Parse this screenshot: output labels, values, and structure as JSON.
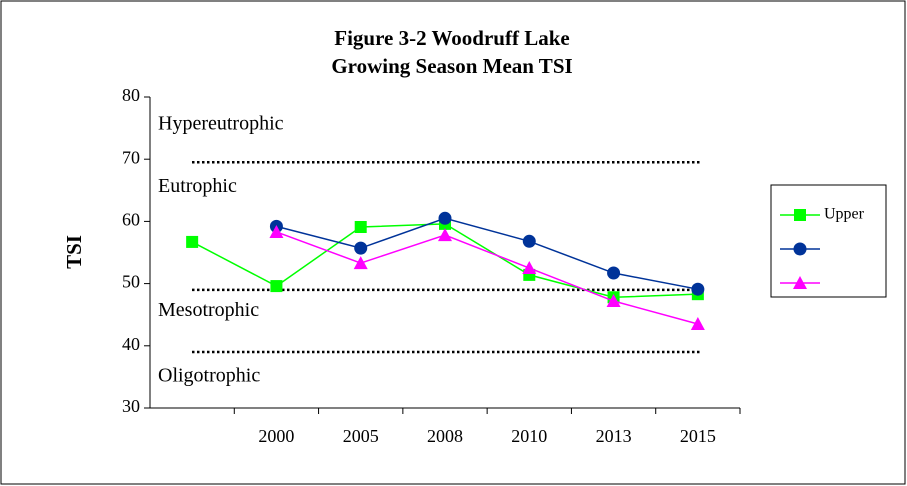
{
  "chart_data": {
    "type": "line",
    "title": [
      "Figure 3-2 Woodruff Lake",
      "Growing Season Mean TSI"
    ],
    "ylabel": "TSI",
    "categories": [
      null,
      "2000",
      "2005",
      "2008",
      "2010",
      "2013",
      "2015"
    ],
    "series": [
      {
        "name": "Upper",
        "color": "#00ff00",
        "marker": "square",
        "values": [
          56.7,
          49.6,
          59.1,
          59.6,
          51.4,
          47.8,
          48.3
        ]
      },
      {
        "color": "#003399",
        "marker": "circle",
        "values": [
          null,
          59.2,
          55.7,
          60.5,
          56.8,
          51.7,
          49.1
        ]
      },
      {
        "color": "#ff00ff",
        "marker": "triangle",
        "values": [
          null,
          58.3,
          53.3,
          57.8,
          52.5,
          47.2,
          43.5
        ]
      }
    ],
    "zones": [
      {
        "label": "Hypereutrophic",
        "at": 75.5
      },
      {
        "label": "Eutrophic",
        "at": 65.5
      },
      {
        "label": "Mesotrophic",
        "at": 45.5
      },
      {
        "label": "Oligotrophic",
        "at": 35
      }
    ],
    "thresholds": [
      69.5,
      49,
      39
    ],
    "ylim": [
      30,
      80
    ],
    "yticks": [
      30,
      40,
      50,
      60,
      70,
      80
    ]
  }
}
